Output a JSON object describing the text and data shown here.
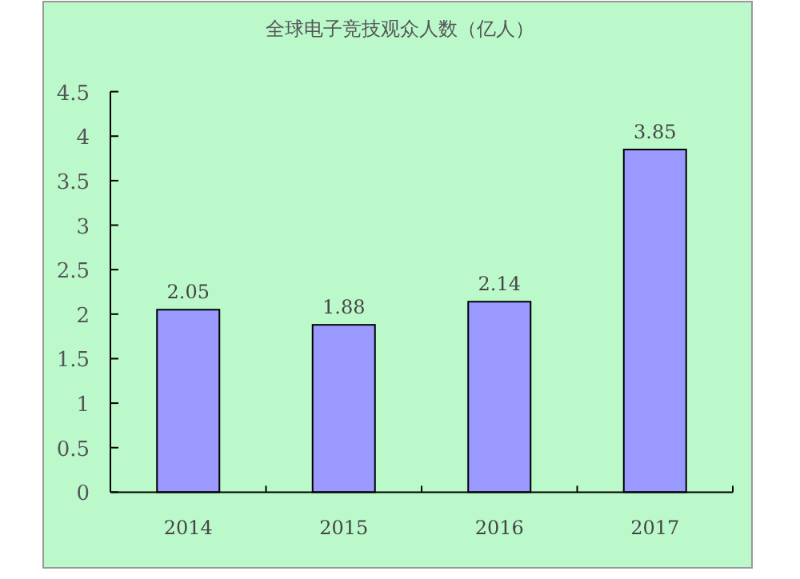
{
  "chart_data": {
    "type": "bar",
    "title": "全球电子竞技观众人数（亿人）",
    "categories": [
      "2014",
      "2015",
      "2016",
      "2017"
    ],
    "values": [
      2.05,
      1.88,
      2.14,
      3.85
    ],
    "color": "#9999ff",
    "ylim": [
      0,
      4.5
    ],
    "yticks": [
      0,
      0.5,
      1,
      1.5,
      2,
      2.5,
      3,
      3.5,
      4,
      4.5
    ],
    "data_labels": true
  }
}
